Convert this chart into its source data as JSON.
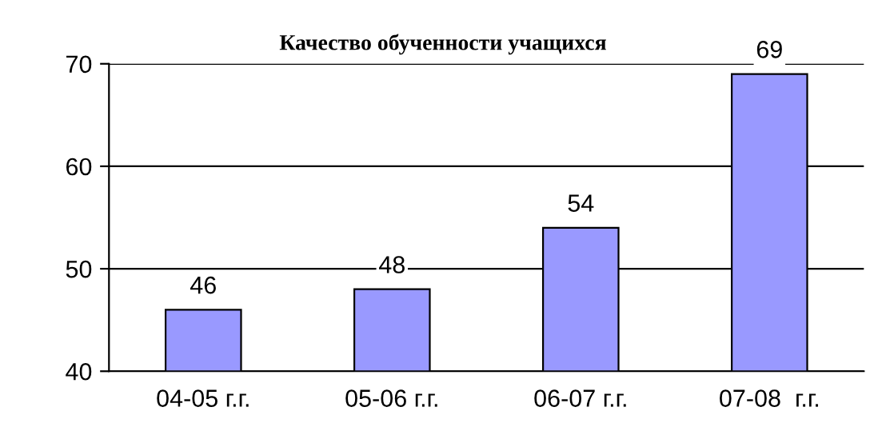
{
  "chart_data": {
    "type": "bar",
    "title": "Качество обученности учащихся",
    "categories": [
      "04-05 г.г.",
      "05-06 г.г.",
      "06-07 г.г.",
      "07-08  г.г."
    ],
    "values": [
      46,
      48,
      54,
      69
    ],
    "color": "#9999ff",
    "ylim": [
      40,
      70
    ],
    "yticks": [
      40,
      50,
      60,
      70
    ],
    "grid": "y",
    "data_labels": true
  }
}
